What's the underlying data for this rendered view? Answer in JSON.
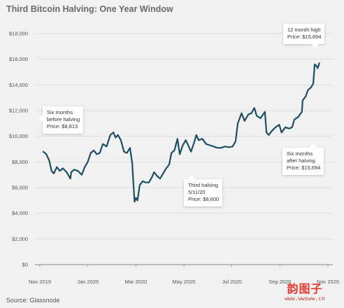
{
  "title": "Third Bitcoin Halving: One Year Window",
  "source": "Source: Glassnode",
  "watermark": {
    "main": "韵图子",
    "url": "www.wwsww.cn"
  },
  "colors": {
    "line": "#1d4f63",
    "background": "#f1f1f1",
    "grid": "#d6d6d6"
  },
  "annotations": {
    "before": [
      "Six months",
      "before halving",
      "Price: $8,813"
    ],
    "halving": [
      "Third halving",
      "5/11/20",
      "Price: $8,600"
    ],
    "after": [
      "Six months",
      "after halving",
      "Price: $15,694"
    ],
    "high": [
      "12 month high",
      "Price: $15,694"
    ]
  },
  "chart_data": {
    "type": "line",
    "title": "Third Bitcoin Halving: One Year Window",
    "xlabel": "",
    "ylabel": "",
    "x_ticks": [
      "Nov 2019",
      "Jan 2020",
      "Mar 2020",
      "May 2020",
      "Jul 2020",
      "Sep 2020",
      "Nov 2020"
    ],
    "y_ticks": [
      "$0",
      "$2,000",
      "$4,000",
      "$6,000",
      "$8,000",
      "$10,000",
      "$12,000",
      "$14,000",
      "$16,000",
      "$18,000"
    ],
    "ylim": [
      0,
      18000
    ],
    "xlim": [
      "2019-11-01",
      "2020-11-30"
    ],
    "grid": true,
    "series": [
      {
        "values": [
          [
            "2019-11-12",
            8800
          ],
          [
            "2019-11-16",
            8600
          ],
          [
            "2019-11-20",
            8100
          ],
          [
            "2019-11-23",
            7300
          ],
          [
            "2019-11-26",
            7100
          ],
          [
            "2019-11-30",
            7600
          ],
          [
            "2019-12-04",
            7300
          ],
          [
            "2019-12-08",
            7500
          ],
          [
            "2019-12-13",
            7200
          ],
          [
            "2019-12-16",
            6900
          ],
          [
            "2019-12-18",
            6700
          ],
          [
            "2019-12-19",
            7200
          ],
          [
            "2019-12-23",
            7400
          ],
          [
            "2019-12-28",
            7300
          ],
          [
            "2020-01-02",
            7000
          ],
          [
            "2020-01-06",
            7600
          ],
          [
            "2020-01-10",
            8000
          ],
          [
            "2020-01-14",
            8700
          ],
          [
            "2020-01-18",
            8900
          ],
          [
            "2020-01-22",
            8600
          ],
          [
            "2020-01-26",
            8700
          ],
          [
            "2020-01-30",
            9400
          ],
          [
            "2020-02-04",
            9200
          ],
          [
            "2020-02-09",
            10100
          ],
          [
            "2020-02-13",
            10300
          ],
          [
            "2020-02-16",
            9900
          ],
          [
            "2020-02-19",
            10100
          ],
          [
            "2020-02-23",
            9700
          ],
          [
            "2020-02-27",
            8800
          ],
          [
            "2020-03-02",
            8700
          ],
          [
            "2020-03-06",
            9100
          ],
          [
            "2020-03-09",
            7900
          ],
          [
            "2020-03-12",
            4900
          ],
          [
            "2020-03-14",
            5200
          ],
          [
            "2020-03-16",
            5000
          ],
          [
            "2020-03-19",
            6200
          ],
          [
            "2020-03-23",
            6500
          ],
          [
            "2020-03-27",
            6400
          ],
          [
            "2020-03-31",
            6400
          ],
          [
            "2020-04-04",
            6800
          ],
          [
            "2020-04-07",
            7200
          ],
          [
            "2020-04-11",
            6900
          ],
          [
            "2020-04-15",
            6700
          ],
          [
            "2020-04-19",
            7100
          ],
          [
            "2020-04-23",
            7500
          ],
          [
            "2020-04-27",
            7800
          ],
          [
            "2020-04-30",
            8700
          ],
          [
            "2020-05-04",
            8900
          ],
          [
            "2020-05-08",
            9800
          ],
          [
            "2020-05-11",
            8600
          ],
          [
            "2020-05-15",
            9300
          ],
          [
            "2020-05-19",
            9700
          ],
          [
            "2020-05-23",
            9200
          ],
          [
            "2020-05-26",
            8800
          ],
          [
            "2020-05-30",
            9500
          ],
          [
            "2020-06-02",
            10100
          ],
          [
            "2020-06-05",
            9700
          ],
          [
            "2020-06-10",
            9800
          ],
          [
            "2020-06-15",
            9400
          ],
          [
            "2020-06-20",
            9300
          ],
          [
            "2020-06-25",
            9200
          ],
          [
            "2020-06-30",
            9100
          ],
          [
            "2020-07-05",
            9100
          ],
          [
            "2020-07-10",
            9200
          ],
          [
            "2020-07-15",
            9150
          ],
          [
            "2020-07-20",
            9200
          ],
          [
            "2020-07-24",
            9600
          ],
          [
            "2020-07-27",
            11000
          ],
          [
            "2020-08-01",
            11800
          ],
          [
            "2020-08-05",
            11200
          ],
          [
            "2020-08-10",
            11700
          ],
          [
            "2020-08-14",
            11800
          ],
          [
            "2020-08-18",
            12200
          ],
          [
            "2020-08-21",
            11600
          ],
          [
            "2020-08-26",
            11400
          ],
          [
            "2020-09-01",
            11900
          ],
          [
            "2020-09-03",
            10300
          ],
          [
            "2020-09-06",
            10100
          ],
          [
            "2020-09-10",
            10400
          ],
          [
            "2020-09-15",
            10700
          ],
          [
            "2020-09-20",
            10900
          ],
          [
            "2020-09-23",
            10300
          ],
          [
            "2020-09-28",
            10700
          ],
          [
            "2020-10-03",
            10600
          ],
          [
            "2020-10-07",
            10700
          ],
          [
            "2020-10-10",
            11300
          ],
          [
            "2020-10-15",
            11500
          ],
          [
            "2020-10-20",
            11900
          ],
          [
            "2020-10-21",
            12800
          ],
          [
            "2020-10-25",
            13100
          ],
          [
            "2020-10-28",
            13600
          ],
          [
            "2020-11-01",
            13800
          ],
          [
            "2020-11-04",
            14100
          ],
          [
            "2020-11-06",
            15600
          ],
          [
            "2020-11-08",
            15500
          ],
          [
            "2020-11-10",
            15300
          ],
          [
            "2020-11-12",
            15694
          ]
        ]
      }
    ]
  }
}
